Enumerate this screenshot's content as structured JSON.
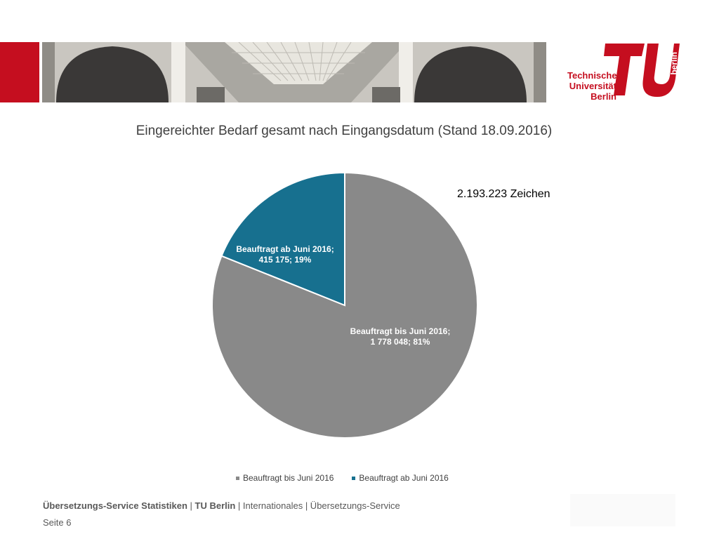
{
  "header": {
    "logo_text_line1": "Technische",
    "logo_text_line2": "Universität",
    "logo_text_line3": "Berlin",
    "logo_word": "berlin"
  },
  "title": "Eingereichter Bedarf gesamt nach Eingangsdatum (Stand 18.09.2016)",
  "total_label": "2.193.223 Zeichen",
  "chart_data": {
    "type": "pie",
    "title": "Eingereichter Bedarf gesamt nach Eingangsdatum (Stand 18.09.2016)",
    "categories": [
      "Beauftragt bis Juni 2016",
      "Beauftragt ab Juni 2016"
    ],
    "values": [
      1778048,
      415175
    ],
    "percentages": [
      81,
      19
    ],
    "data_labels": [
      [
        "Beauftragt bis Juni 2016;",
        "1 778 048; 81%"
      ],
      [
        "Beauftragt ab Juni 2016;",
        "415 175; 19%"
      ]
    ],
    "colors": [
      "#898989",
      "#17708f"
    ],
    "legend_placement": "bottom"
  },
  "legend": [
    {
      "label": "Beauftragt bis Juni 2016",
      "color": "#898989"
    },
    {
      "label": "Beauftragt ab Juni 2016",
      "color": "#17708f"
    }
  ],
  "footer": {
    "bold_part": "Übersetzungs-Service Statistiken",
    "sep1": " | ",
    "bold_org": "TU Berlin",
    "sep2": " | ",
    "rest": "Internationales | Übersetzungs-Service",
    "page": "Seite 6"
  },
  "colors": {
    "brand_red": "#c50e1f",
    "slice_gray": "#898989",
    "slice_blue": "#17708f"
  }
}
